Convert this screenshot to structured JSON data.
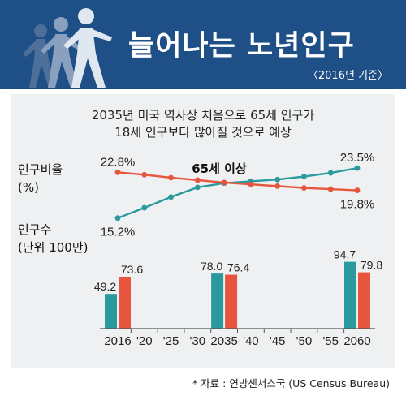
{
  "header": {
    "title": "늘어나는 노년인구",
    "basis": "〈2016년 기준〉"
  },
  "subtitle": {
    "line1": "2035년 미국 역사상 처음으로 65세 인구가",
    "line2": "18세 인구보다 많아질 것으로 예상"
  },
  "labels": {
    "ratio_line1": "인구비율",
    "ratio_line2": "(%)",
    "count_line1": "인구수",
    "count_line2": "(단위 100만)",
    "senior_series": "65세 이상"
  },
  "source": "* 자료 : 연방센서스국 (US Census Bureau)",
  "colors": {
    "senior": "#2a9a9e",
    "youth": "#e8553e",
    "header_bg": "#1e4f86",
    "panel_bg": "#eef0f1"
  },
  "chart_data": {
    "type": "line+bar",
    "categories": [
      "2016",
      "'20",
      "'25",
      "'30",
      "2035",
      "'40",
      "'45",
      "'50",
      "'55",
      "2060"
    ],
    "line_series": [
      {
        "name": "65세 이상",
        "color": "#2a9a9e",
        "values": [
          15.2,
          16.9,
          18.7,
          20.3,
          21.0,
          21.3,
          21.6,
          22.1,
          22.7,
          23.5
        ],
        "labels": {
          "0": "15.2%",
          "9": "23.5%"
        }
      },
      {
        "color": "#e8553e",
        "values": [
          22.8,
          22.4,
          21.9,
          21.5,
          21.1,
          20.8,
          20.5,
          20.2,
          20.0,
          19.8
        ],
        "labels": {
          "0": "22.8%",
          "9": "19.8%"
        }
      }
    ],
    "bar_groups": [
      {
        "category": "2016",
        "values": [
          49.2,
          73.6
        ],
        "labels": [
          "49.2",
          "73.6"
        ]
      },
      {
        "category": "2035",
        "values": [
          78.0,
          76.4
        ],
        "labels": [
          "78.0",
          "76.4"
        ]
      },
      {
        "category": "2060",
        "values": [
          94.7,
          79.8
        ],
        "labels": [
          "94.7",
          "79.8"
        ]
      }
    ],
    "bar_colors": [
      "#2a9a9e",
      "#e8553e"
    ],
    "line_ylim": [
      13,
      25
    ],
    "bar_ylim": [
      0,
      100
    ]
  }
}
